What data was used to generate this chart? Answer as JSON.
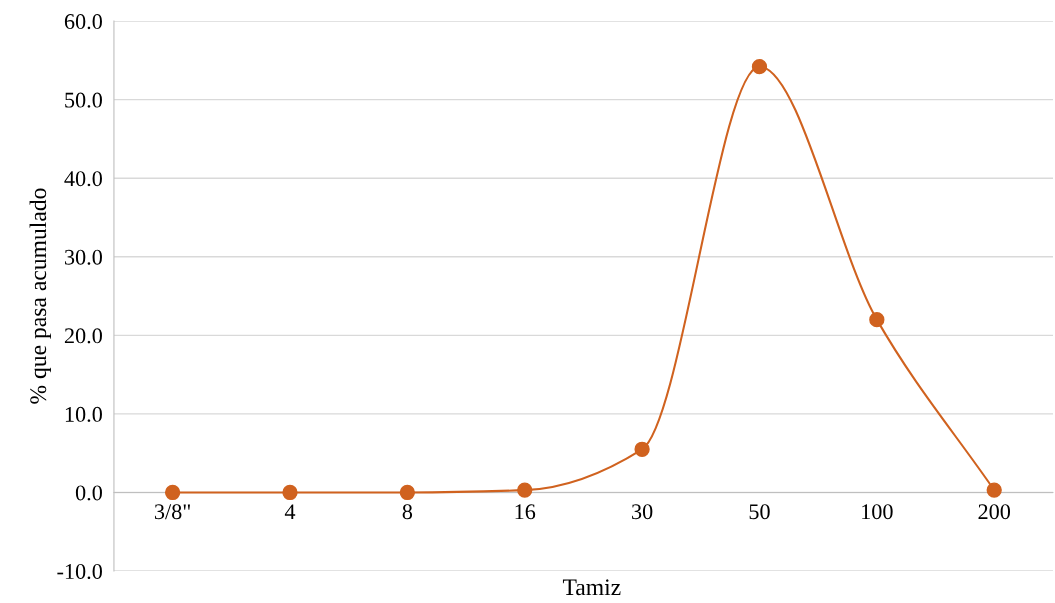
{
  "chart_data": {
    "type": "line",
    "xlabel": "Tamiz",
    "ylabel": "% que pasa acumulado",
    "categories": [
      "3/8\"",
      "4",
      "8",
      "16",
      "30",
      "50",
      "100",
      "200"
    ],
    "series": [
      {
        "color": "#d0621f",
        "values": [
          0.0,
          0.0,
          0.0,
          0.3,
          5.5,
          54.2,
          22.0,
          0.3
        ]
      }
    ],
    "ylim": [
      -10,
      60
    ],
    "yticks": [
      {
        "value": -10,
        "label": "-10.0"
      },
      {
        "value": 0,
        "label": "0.0"
      },
      {
        "value": 10,
        "label": "10.0"
      },
      {
        "value": 20,
        "label": "20.0"
      },
      {
        "value": 30,
        "label": "30.0"
      },
      {
        "value": 40,
        "label": "40.0"
      },
      {
        "value": 50,
        "label": "50.0"
      },
      {
        "value": 60,
        "label": "60.0"
      }
    ],
    "grid": "y",
    "marker": "circle",
    "line_style": "solid"
  }
}
